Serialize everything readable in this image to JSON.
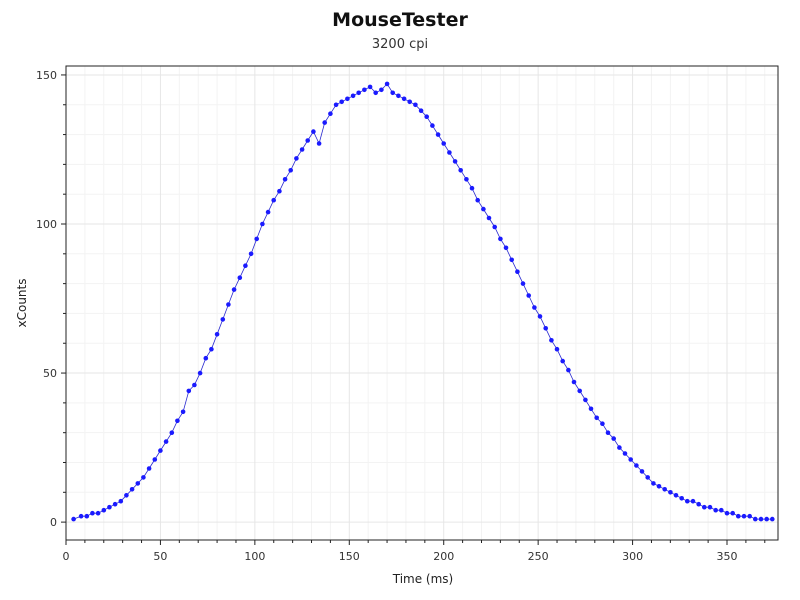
{
  "colors": {
    "series": "#1a1aff",
    "curve": "#2a2ad0",
    "grid_major": "#e6e6e6",
    "grid_minor": "#f3f3f3",
    "axis": "#222222",
    "text": "#333333"
  },
  "chart_data": {
    "type": "scatter",
    "title": "MouseTester",
    "subtitle": "3200 cpi",
    "xlabel": "Time (ms)",
    "ylabel": "xCounts",
    "xlim": [
      0,
      377
    ],
    "ylim": [
      -6,
      153
    ],
    "xticks": [
      0,
      50,
      100,
      150,
      200,
      250,
      300,
      350
    ],
    "yticks": [
      0,
      50,
      100,
      150
    ],
    "grid": true,
    "minor_grid": true,
    "legend": "none",
    "series": [
      {
        "style": "points-with-fit-line",
        "x": [
          4,
          8,
          11,
          14,
          17,
          20,
          23,
          26,
          29,
          32,
          35,
          38,
          41,
          44,
          47,
          50,
          53,
          56,
          59,
          62,
          65,
          68,
          71,
          74,
          77,
          80,
          83,
          86,
          89,
          92,
          95,
          98,
          101,
          104,
          107,
          110,
          113,
          116,
          119,
          122,
          125,
          128,
          131,
          134,
          137,
          140,
          143,
          146,
          149,
          152,
          155,
          158,
          161,
          164,
          167,
          170,
          173,
          176,
          179,
          182,
          185,
          188,
          191,
          194,
          197,
          200,
          203,
          206,
          209,
          212,
          215,
          218,
          221,
          224,
          227,
          230,
          233,
          236,
          239,
          242,
          245,
          248,
          251,
          254,
          257,
          260,
          263,
          266,
          269,
          272,
          275,
          278,
          281,
          284,
          287,
          290,
          293,
          296,
          299,
          302,
          305,
          308,
          311,
          314,
          317,
          320,
          323,
          326,
          329,
          332,
          335,
          338,
          341,
          344,
          347,
          350,
          353,
          356,
          359,
          362,
          365,
          368,
          371,
          374
        ],
        "y": [
          1,
          2,
          2,
          3,
          3,
          4,
          5,
          6,
          7,
          9,
          11,
          13,
          15,
          18,
          21,
          24,
          27,
          30,
          34,
          37,
          44,
          46,
          50,
          55,
          58,
          63,
          68,
          73,
          78,
          82,
          86,
          90,
          95,
          100,
          104,
          108,
          111,
          115,
          118,
          122,
          125,
          128,
          131,
          127,
          134,
          137,
          140,
          141,
          142,
          143,
          144,
          145,
          146,
          144,
          145,
          147,
          144,
          143,
          142,
          141,
          140,
          138,
          136,
          133,
          130,
          127,
          124,
          121,
          118,
          115,
          112,
          108,
          105,
          102,
          99,
          95,
          92,
          88,
          84,
          80,
          76,
          72,
          69,
          65,
          61,
          58,
          54,
          51,
          47,
          44,
          41,
          38,
          35,
          33,
          30,
          28,
          25,
          23,
          21,
          19,
          17,
          15,
          13,
          12,
          11,
          10,
          9,
          8,
          7,
          7,
          6,
          5,
          5,
          4,
          4,
          3,
          3,
          2,
          2,
          2,
          1,
          1,
          1,
          1
        ]
      }
    ]
  }
}
